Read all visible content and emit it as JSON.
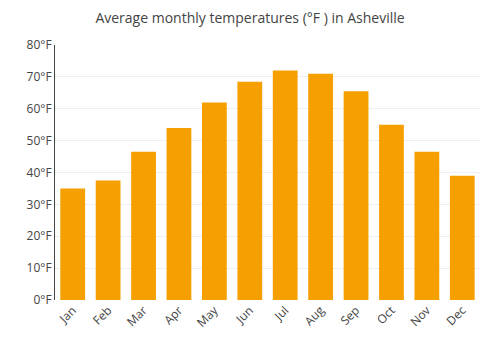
{
  "chart_data": {
    "type": "bar",
    "title": "Average monthly temperatures (°F ) in Asheville",
    "categories": [
      "Jan",
      "Feb",
      "Mar",
      "Apr",
      "May",
      "Jun",
      "Jul",
      "Aug",
      "Sep",
      "Oct",
      "Nov",
      "Dec"
    ],
    "values": [
      35.0,
      37.5,
      46.5,
      54.0,
      62.0,
      68.5,
      72.0,
      71.0,
      65.5,
      55.0,
      46.5,
      39.0
    ],
    "color": "#F5A000",
    "ylim": [
      0,
      80
    ],
    "yticks": [
      {
        "value": 0,
        "label": "0°F"
      },
      {
        "value": 10,
        "label": "10°F"
      },
      {
        "value": 20,
        "label": "20°F"
      },
      {
        "value": 30,
        "label": "30°F"
      },
      {
        "value": 40,
        "label": "40°F"
      },
      {
        "value": 50,
        "label": "50°F"
      },
      {
        "value": 60,
        "label": "60°F"
      },
      {
        "value": 70,
        "label": "70°F"
      },
      {
        "value": 80,
        "label": "80°F"
      }
    ],
    "grid": true
  }
}
